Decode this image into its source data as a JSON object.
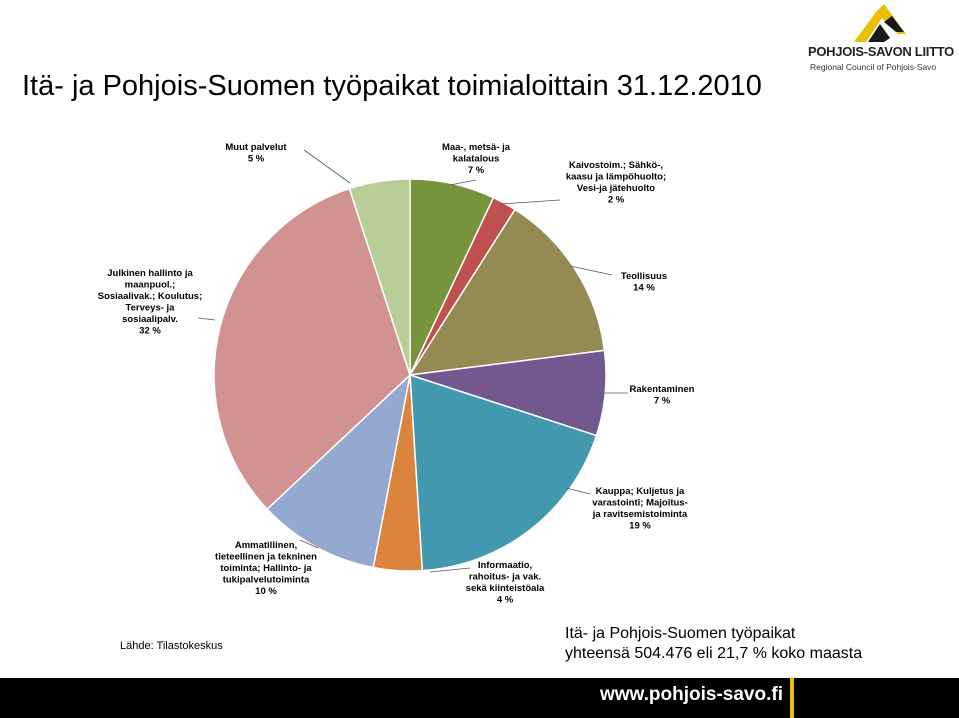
{
  "title": "Itä- ja Pohjois-Suomen työpaikat toimialoittain 31.12.2010",
  "logo": {
    "name": "POHJOIS-SAVON LIITTO",
    "subtitle": "Regional Council of Pohjois-Savo"
  },
  "source_note": "Lähde: Tilastokeskus",
  "total_note": {
    "line1": "Itä- ja Pohjois-Suomen työpaikat",
    "line2": "yhteensä  504.476 eli 21,7 % koko maasta"
  },
  "footer_url": "www.pohjois-savo.fi",
  "colors": {
    "accent": "#e8c000",
    "footer": "#000000"
  },
  "chart_data": {
    "type": "pie",
    "unit": "%",
    "slices": [
      {
        "label_lines": [
          "Maa-, metsä- ja",
          "kalatalous",
          "7 %"
        ],
        "value": 7,
        "color": "#77933c"
      },
      {
        "label_lines": [
          "Kaivostoim.; Sähkö-,",
          "kaasu ja lämpöhuolto;",
          "Vesi-ja jätehuolto",
          "2 %"
        ],
        "value": 2,
        "color": "#c0504d"
      },
      {
        "label_lines": [
          "Teollisuus",
          "14 %"
        ],
        "value": 14,
        "color": "#948a54"
      },
      {
        "label_lines": [
          "Rakentaminen",
          "7 %"
        ],
        "value": 7,
        "color": "#71588f"
      },
      {
        "label_lines": [
          "Kauppa; Kuljetus ja",
          "varastointi; Majoitus-",
          "ja ravitsemistoiminta",
          "19 %"
        ],
        "value": 19,
        "color": "#4198af"
      },
      {
        "label_lines": [
          "Informaatio,",
          "rahoitus- ja vak.",
          "sekä kiinteistöala",
          "4 %"
        ],
        "value": 4,
        "color": "#db843d"
      },
      {
        "label_lines": [
          "Ammatillinen,",
          "tieteellinen ja tekninen",
          "toiminta; Hallinto- ja",
          "tukipalvelutoiminta",
          "10 %"
        ],
        "value": 10,
        "color": "#93a9cf"
      },
      {
        "label_lines": [
          "Julkinen hallinto ja",
          "maanpuol.;",
          "Sosiaalivak.; Koulutus;",
          "Terveys- ja",
          "sosiaalipalv.",
          "32 %"
        ],
        "value": 32,
        "color": "#d19392"
      },
      {
        "label_lines": [
          "Muut palvelut",
          "5 %"
        ],
        "value": 5,
        "color": "#b9cd96"
      }
    ]
  }
}
